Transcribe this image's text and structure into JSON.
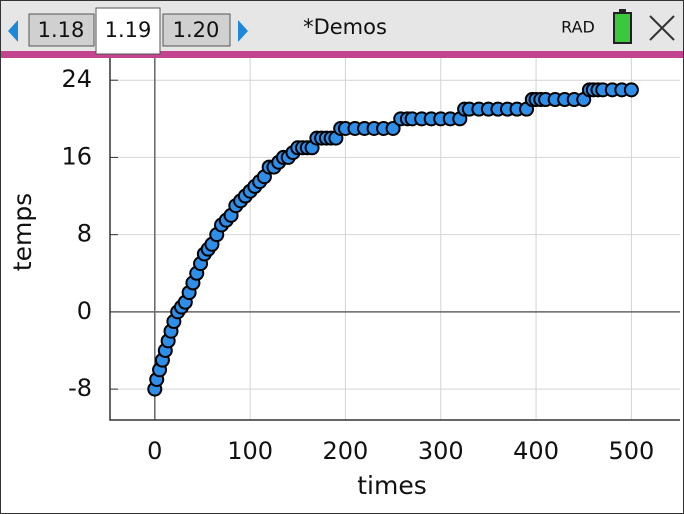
{
  "header": {
    "tabs": [
      "1.18",
      "1.19",
      "1.20"
    ],
    "title": "*Demos",
    "mode": "RAD"
  },
  "chart_data": {
    "type": "scatter",
    "xlabel": "times",
    "ylabel": "temps",
    "color": "#2f8fe8",
    "x": [
      0,
      2,
      5,
      8,
      11,
      14,
      17,
      20,
      24,
      28,
      32,
      36,
      40,
      44,
      48,
      52,
      56,
      60,
      65,
      70,
      75,
      80,
      85,
      90,
      95,
      100,
      105,
      110,
      115,
      120,
      125,
      130,
      135,
      140,
      145,
      150,
      155,
      160,
      165,
      170,
      175,
      180,
      185,
      190,
      195,
      200,
      210,
      220,
      230,
      240,
      250,
      258,
      265,
      270,
      280,
      290,
      300,
      310,
      320,
      325,
      330,
      340,
      350,
      360,
      370,
      380,
      390,
      396,
      400,
      405,
      410,
      420,
      430,
      440,
      450,
      456,
      460,
      465,
      470,
      480,
      490,
      500
    ],
    "values": [
      -8,
      -7,
      -6,
      -5,
      -4,
      -3,
      -2,
      -1,
      0,
      0.5,
      1,
      2,
      3,
      4,
      5,
      6,
      6.5,
      7,
      8,
      9,
      9.5,
      10,
      11,
      11.5,
      12,
      12.5,
      13,
      13.5,
      14,
      15,
      15,
      15.5,
      16,
      16,
      16.5,
      17,
      17,
      17,
      17,
      18,
      18,
      18,
      18,
      18,
      19,
      19,
      19,
      19,
      19,
      19,
      19,
      20,
      20,
      20,
      20,
      20,
      20,
      20,
      20,
      21,
      21,
      21,
      21,
      21,
      21,
      21,
      21,
      22,
      22,
      22,
      22,
      22,
      22,
      22,
      22,
      23,
      23,
      23,
      23,
      23,
      23,
      23
    ],
    "xlim": [
      -47,
      551
    ],
    "ylim": [
      -11.2,
      26.3
    ],
    "xticks": [
      0,
      100,
      200,
      300,
      400,
      500
    ],
    "yticks": [
      -8,
      0,
      8,
      16,
      24
    ],
    "grid": true
  }
}
